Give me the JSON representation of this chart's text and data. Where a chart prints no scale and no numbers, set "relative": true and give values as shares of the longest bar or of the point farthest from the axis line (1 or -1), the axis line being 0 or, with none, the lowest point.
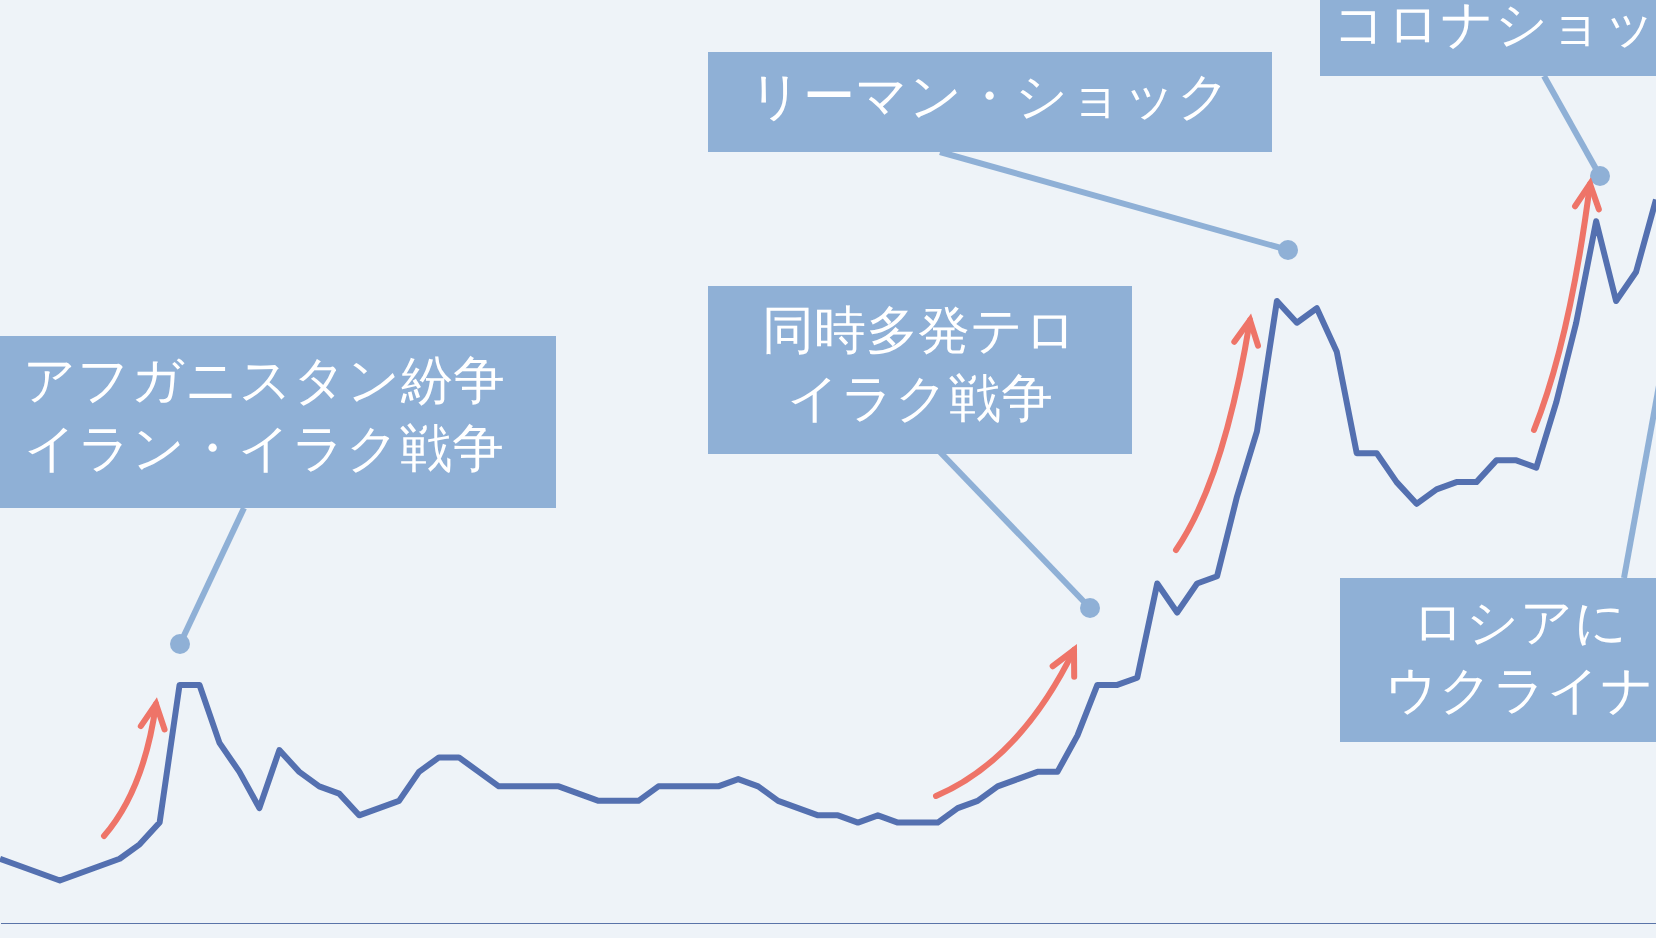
{
  "chart_data": {
    "type": "line",
    "relative": true,
    "categories": [
      null,
      null,
      null,
      null,
      null,
      null,
      null,
      null,
      null,
      null,
      null,
      null,
      null,
      null,
      null,
      null,
      null,
      null,
      null,
      null,
      null,
      null,
      null,
      null,
      null,
      null,
      null,
      null,
      null,
      null,
      null,
      null,
      null,
      null,
      null,
      null,
      null,
      null,
      null,
      null,
      null,
      null,
      null,
      null,
      null,
      null,
      null,
      null,
      null,
      null,
      null,
      null,
      null,
      null,
      null,
      null,
      null,
      null,
      null,
      null,
      null,
      null,
      null,
      null,
      null,
      null,
      null,
      null,
      null,
      null,
      null,
      null,
      null,
      null,
      null,
      null,
      null,
      null,
      null,
      null,
      null,
      null,
      null,
      null
    ],
    "series": [
      {
        "color": "#5470b0",
        "values": [
          0.09,
          0.08,
          0.07,
          0.06,
          0.07,
          0.08,
          0.09,
          0.11,
          0.14,
          0.33,
          0.33,
          0.25,
          0.21,
          0.16,
          0.24,
          0.21,
          0.19,
          0.18,
          0.15,
          0.16,
          0.17,
          0.21,
          0.23,
          0.23,
          0.21,
          0.19,
          0.19,
          0.19,
          0.19,
          0.18,
          0.17,
          0.17,
          0.17,
          0.19,
          0.19,
          0.19,
          0.19,
          0.2,
          0.19,
          0.17,
          0.16,
          0.15,
          0.15,
          0.14,
          0.15,
          0.14,
          0.14,
          0.14,
          0.16,
          0.17,
          0.19,
          0.2,
          0.21,
          0.21,
          0.26,
          0.33,
          0.33,
          0.34,
          0.47,
          0.43,
          0.47,
          0.48,
          0.59,
          0.68,
          0.86,
          0.83,
          0.85,
          0.79,
          0.65,
          0.65,
          0.61,
          0.58,
          0.6,
          0.61,
          0.61,
          0.64,
          0.64,
          0.63,
          0.72,
          0.83,
          0.97,
          0.86,
          0.9,
          1.0
        ]
      }
    ],
    "annotations": [
      "アフガニスタン紛争",
      "イラン・イラク戦争",
      "リーマン・ショック",
      "同時多発テロ",
      "イラク戦争",
      "コロナショッ",
      "ロシアに",
      "ウクライナ"
    ]
  }
}
